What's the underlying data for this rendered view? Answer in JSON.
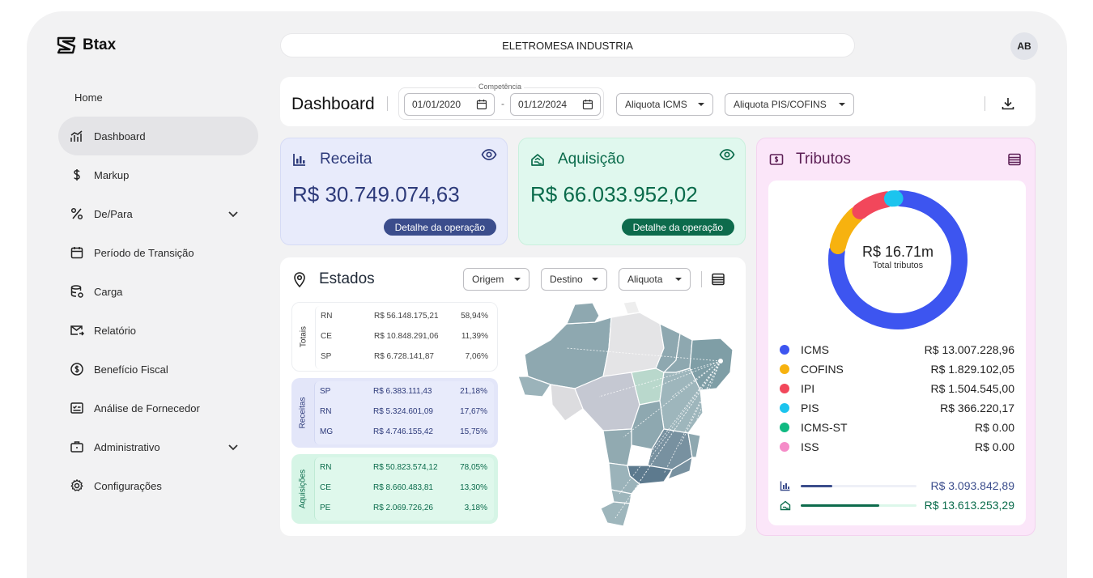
{
  "app": {
    "name": "Btax"
  },
  "sidebar": {
    "items": [
      {
        "label": "Home"
      },
      {
        "label": "Dashboard"
      },
      {
        "label": "Markup"
      },
      {
        "label": "De/Para"
      },
      {
        "label": "Período de Transição"
      },
      {
        "label": "Carga"
      },
      {
        "label": "Relatório"
      },
      {
        "label": "Benefício Fiscal"
      },
      {
        "label": "Análise de Fornecedor"
      },
      {
        "label": "Administrativo"
      },
      {
        "label": "Configurações"
      }
    ]
  },
  "header": {
    "company": "ELETROMESA INDUSTRIA",
    "avatar": "AB"
  },
  "toolbar": {
    "title": "Dashboard",
    "competencia_label": "Competência",
    "date_start": "01/01/2020",
    "date_end": "01/12/2024",
    "date_separator": "-",
    "aliquota_icms": "Aliquota ICMS",
    "aliquota_pis": "Aliquota PIS/COFINS"
  },
  "receita": {
    "title": "Receita",
    "amount": "R$ 30.749.074,63",
    "button": "Detalhe da operação"
  },
  "aquisicao": {
    "title": "Aquisição",
    "amount": "R$ 66.033.952,02",
    "button": "Detalhe da operação"
  },
  "estados": {
    "title": "Estados",
    "filters": {
      "origem": "Origem",
      "destino": "Destino",
      "aliquota": "Aliquota"
    },
    "groups": [
      {
        "label": "Totais",
        "rows": [
          {
            "state": "RN",
            "value": "R$ 56.148.175,21",
            "pct": "58,94%"
          },
          {
            "state": "CE",
            "value": "R$ 10.848.291,06",
            "pct": "11,39%"
          },
          {
            "state": "SP",
            "value": "R$ 6.728.141,87",
            "pct": "7,06%"
          }
        ]
      },
      {
        "label": "Receitas",
        "rows": [
          {
            "state": "SP",
            "value": "R$ 6.383.111,43",
            "pct": "21,18%"
          },
          {
            "state": "RN",
            "value": "R$ 5.324.601,09",
            "pct": "17,67%"
          },
          {
            "state": "MG",
            "value": "R$ 4.746.155,42",
            "pct": "15,75%"
          }
        ]
      },
      {
        "label": "Aquisições",
        "rows": [
          {
            "state": "RN",
            "value": "R$ 50.823.574,12",
            "pct": "78,05%"
          },
          {
            "state": "CE",
            "value": "R$ 8.660.483,81",
            "pct": "13,30%"
          },
          {
            "state": "PE",
            "value": "R$ 2.069.726,26",
            "pct": "3,18%"
          }
        ]
      }
    ]
  },
  "tributos": {
    "title": "Tributos",
    "total": "R$ 16.71m",
    "total_label": "Total tributos",
    "items": [
      {
        "name": "ICMS",
        "value": "R$ 13.007.228,96",
        "color": "#3d55f0",
        "share": 0.778
      },
      {
        "name": "COFINS",
        "value": "R$ 1.829.102,05",
        "color": "#f7b20f",
        "share": 0.109
      },
      {
        "name": "IPI",
        "value": "R$ 1.504.545,00",
        "color": "#f2475b",
        "share": 0.09
      },
      {
        "name": "PIS",
        "value": "R$ 366.220,17",
        "color": "#1cc4ee",
        "share": 0.022
      },
      {
        "name": "ICMS-ST",
        "value": "R$ 0.00",
        "color": "#10b981",
        "share": 0
      },
      {
        "name": "ISS",
        "value": "R$ 0.00",
        "color": "#f58cc8",
        "share": 0
      }
    ],
    "receita_total": "R$ 3.093.842,89",
    "receita_fraction": 0.27,
    "aquisicao_total": "R$ 13.613.253,29",
    "aquisicao_fraction": 0.68
  },
  "colors": {
    "receita": "#3b4d8c",
    "aquisicao": "#0d6b4c",
    "tributos": "#5c1f55"
  }
}
